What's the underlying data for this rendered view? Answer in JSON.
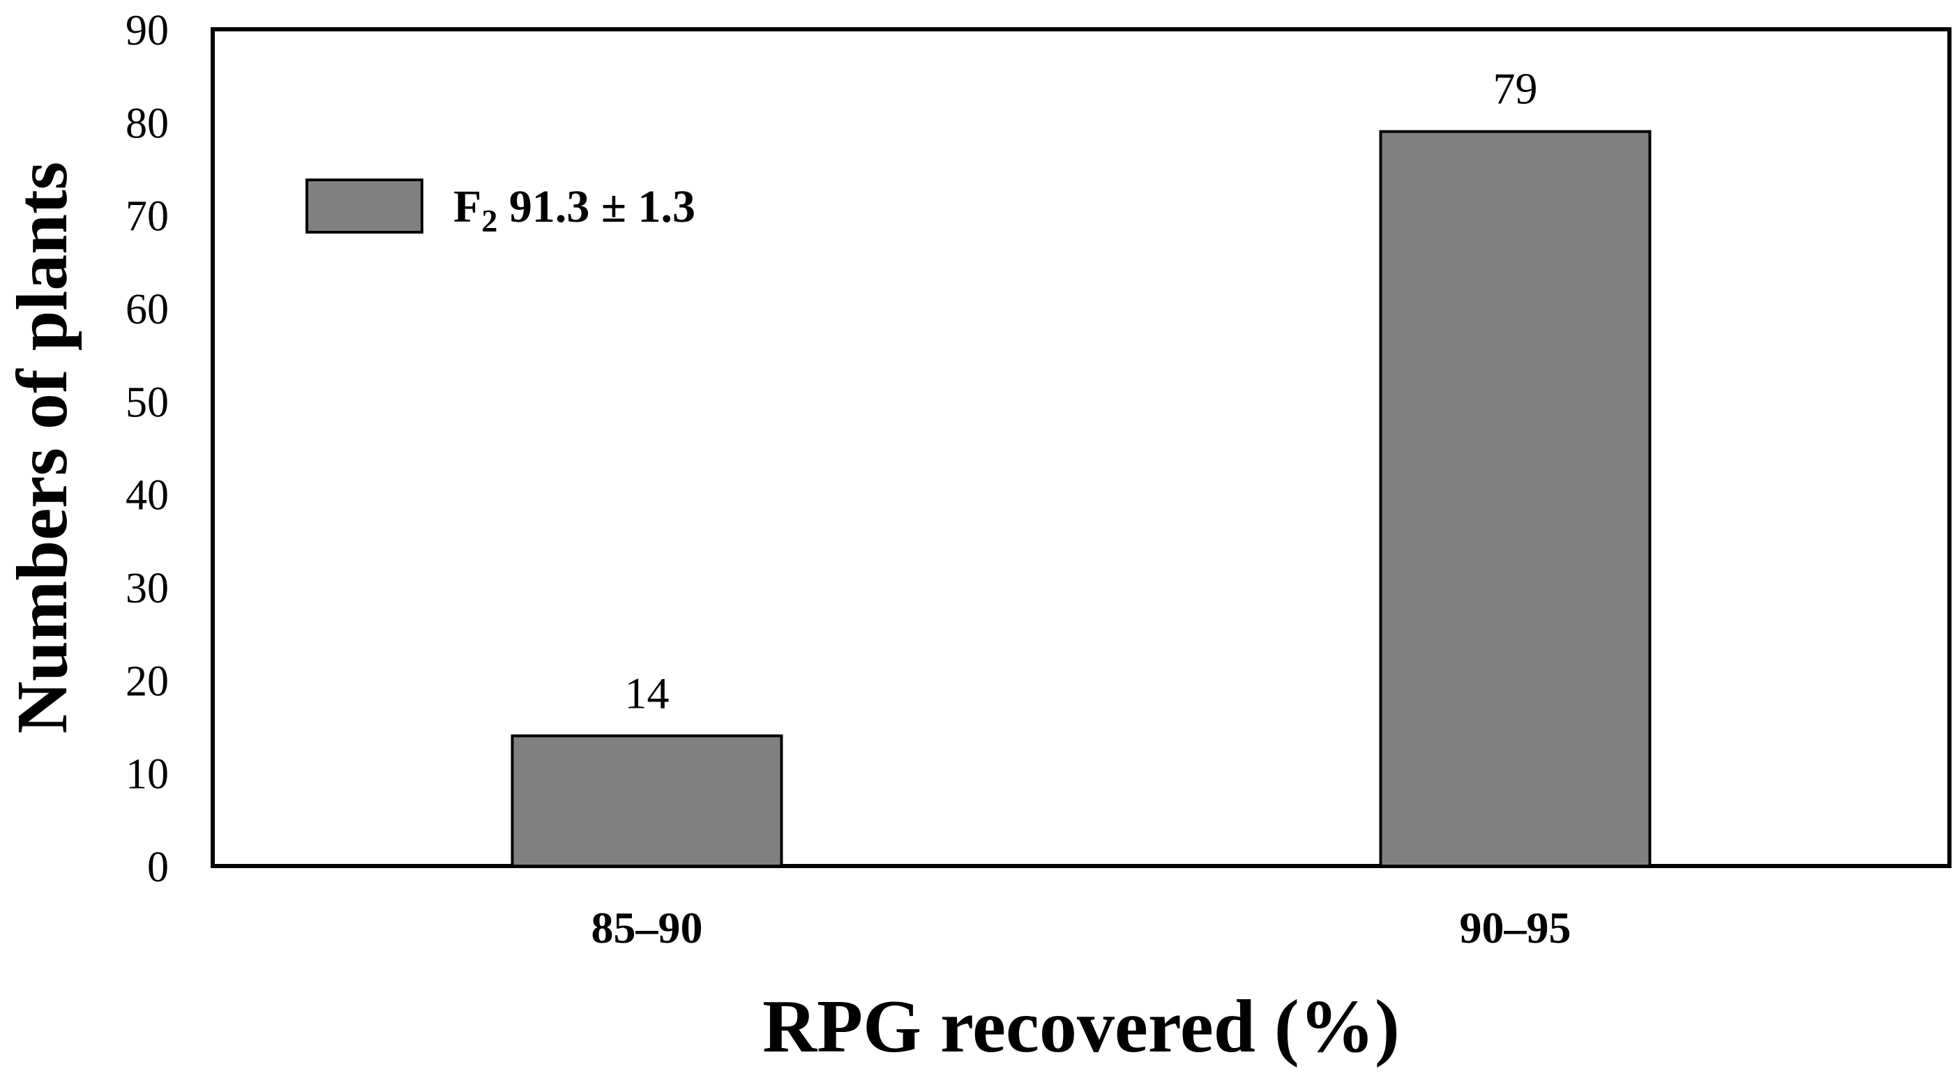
{
  "chart_data": {
    "type": "bar",
    "categories": [
      "85–90",
      "90–95"
    ],
    "series": [
      {
        "name_main": "F",
        "name_sub": "2",
        "name_rest": " 91.3 ± 1.3",
        "values": [
          14,
          79
        ],
        "color": "#808080"
      }
    ],
    "data_labels": [
      "14",
      "79"
    ],
    "xlabel": "RPG recovered (%)",
    "ylabel": "Numbers of plants",
    "ylim": [
      0,
      90
    ],
    "yticks": [
      "0",
      "10",
      "20",
      "30",
      "40",
      "50",
      "60",
      "70",
      "80",
      "90"
    ],
    "grid": false,
    "legend_position": "top-left"
  }
}
